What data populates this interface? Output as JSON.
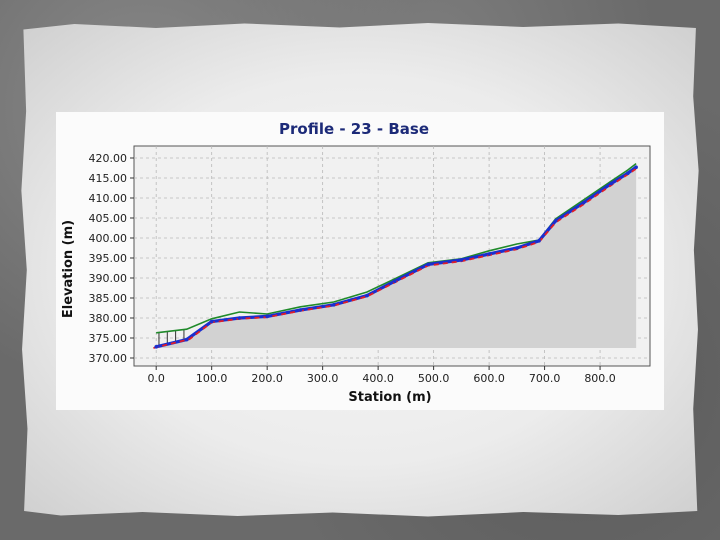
{
  "chart_data": {
    "type": "line",
    "title": "Profile - 23 - Base",
    "xlabel": "Station (m)",
    "ylabel": "Elevation (m)",
    "xlim": [
      -40,
      890
    ],
    "ylim": [
      368,
      423
    ],
    "xticks": [
      0,
      100,
      200,
      300,
      400,
      500,
      600,
      700,
      800
    ],
    "xtick_labels": [
      "0.0",
      "100.0",
      "200.0",
      "300.0",
      "400.0",
      "500.0",
      "600.0",
      "700.0",
      "800.0"
    ],
    "yticks": [
      370,
      375,
      380,
      385,
      390,
      395,
      400,
      405,
      410,
      415,
      420
    ],
    "ytick_labels": [
      "370.00",
      "375.00",
      "380.00",
      "385.00",
      "390.00",
      "395.00",
      "400.00",
      "405.00",
      "410.00",
      "415.00",
      "420.00"
    ],
    "grid": true,
    "fill_base": 372.5,
    "colors": {
      "existing": "#1f8a2a",
      "design": "#1a2fcf",
      "reference": "#e01c28",
      "fill": "#d2d2d2",
      "plot_bg": "#f1f1f1"
    },
    "series": [
      {
        "role": "existing",
        "x": [
          0,
          55,
          100,
          150,
          200,
          260,
          320,
          380,
          430,
          490,
          550,
          600,
          650,
          690,
          720,
          770,
          820,
          850,
          865
        ],
        "y": [
          376.3,
          377.2,
          379.8,
          381.5,
          381.0,
          382.8,
          384.0,
          386.5,
          389.8,
          393.8,
          394.8,
          396.8,
          398.5,
          399.5,
          404.8,
          409.5,
          414.2,
          417.0,
          418.6
        ]
      },
      {
        "role": "design",
        "x": [
          0,
          55,
          100,
          150,
          200,
          260,
          320,
          380,
          430,
          490,
          550,
          600,
          650,
          690,
          720,
          770,
          820,
          850,
          865
        ],
        "y": [
          372.8,
          374.6,
          379.1,
          380.0,
          380.4,
          382.0,
          383.3,
          385.6,
          389.2,
          393.4,
          394.5,
          396.0,
          397.5,
          399.3,
          404.3,
          408.8,
          413.6,
          416.2,
          417.7
        ]
      },
      {
        "role": "reference",
        "x": [
          -5,
          60,
          100,
          150,
          200,
          260,
          320,
          380,
          430,
          490,
          550,
          600,
          650,
          690,
          720,
          770,
          820,
          850,
          870
        ],
        "y": [
          372.5,
          374.7,
          378.9,
          379.8,
          380.2,
          381.8,
          383.1,
          385.4,
          388.9,
          393.1,
          394.2,
          395.7,
          397.2,
          399.0,
          403.9,
          408.4,
          413.2,
          415.9,
          417.8
        ]
      }
    ]
  }
}
